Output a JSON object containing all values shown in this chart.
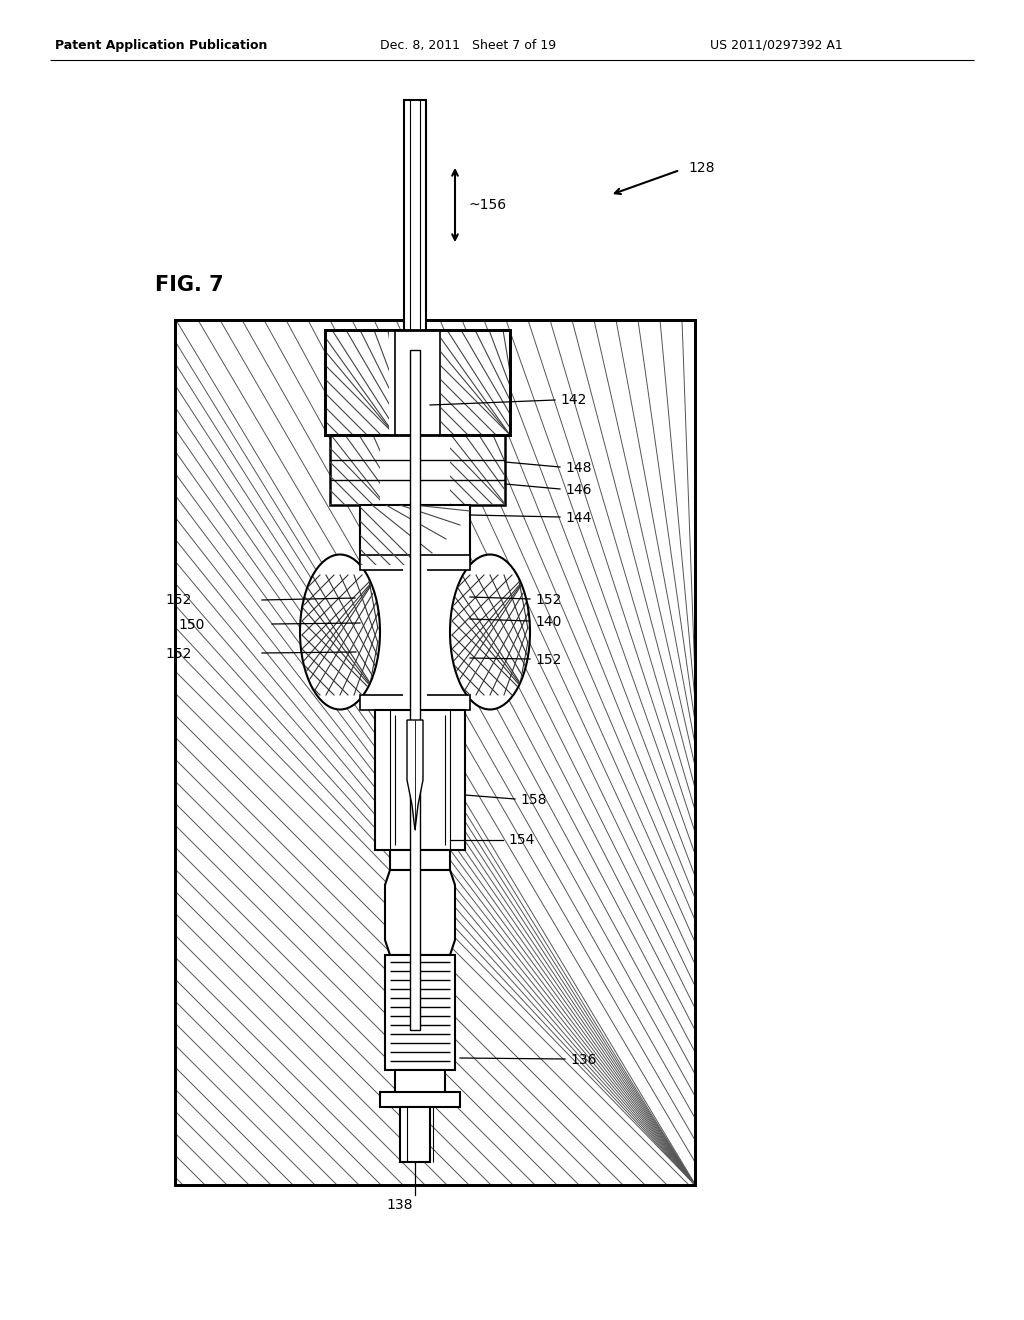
{
  "bg_color": "#ffffff",
  "header_left": "Patent Application Publication",
  "header_mid": "Dec. 8, 2011   Sheet 7 of 19",
  "header_right": "US 2011/0297392 A1",
  "fig_label": "FIG. 7",
  "hatch_color": "#555555",
  "line_color": "#000000",
  "font_size_header": 9,
  "font_size_label": 10,
  "font_size_fig": 15
}
